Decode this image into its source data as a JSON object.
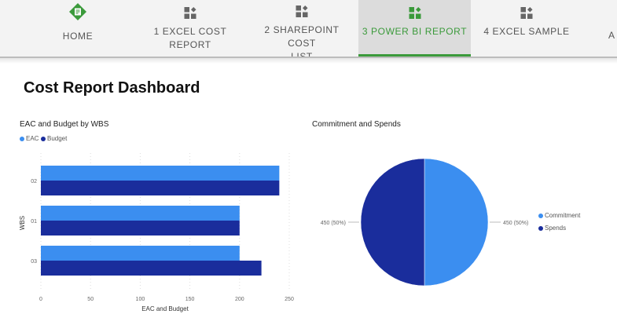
{
  "nav": {
    "tabs": [
      {
        "label": "HOME",
        "icon": "home-report-icon"
      },
      {
        "label": "1 EXCEL COST REPORT",
        "icon": "report-grid-icon"
      },
      {
        "label": "2 SHAREPOINT COST LIST",
        "icon": "report-grid-icon"
      },
      {
        "label": "3 POWER BI REPORT",
        "icon": "report-grid-icon",
        "active": true
      },
      {
        "label": "4 EXCEL SAMPLE",
        "icon": "report-grid-icon"
      },
      {
        "label": "A",
        "icon": ""
      }
    ],
    "active_color": "#3b9a3b"
  },
  "page": {
    "title": "Cost Report Dashboard"
  },
  "bar_visual": {
    "title": "EAC and Budget by WBS"
  },
  "pie_visual": {
    "title": "Commitment and Spends"
  },
  "colors": {
    "eac": "#3b8ef0",
    "budget": "#1a2d9c"
  },
  "chart_data": [
    {
      "type": "bar",
      "orientation": "horizontal",
      "title": "EAC and Budget by WBS",
      "categories": [
        "02",
        "01",
        "03"
      ],
      "series": [
        {
          "name": "EAC",
          "values": [
            240,
            200,
            200
          ]
        },
        {
          "name": "Budget",
          "values": [
            240,
            200,
            222
          ]
        }
      ],
      "xlabel": "EAC and Budget",
      "ylabel": "WBS",
      "xlim": [
        0,
        250
      ],
      "x_ticks": [
        "0",
        "50",
        "100",
        "150",
        "200",
        "250"
      ],
      "legend": "top-left",
      "grid": true
    },
    {
      "type": "pie",
      "title": "Commitment and Spends",
      "slices": [
        {
          "name": "Commitment",
          "value": 450,
          "label": "450 (50%)"
        },
        {
          "name": "Spends",
          "value": 450,
          "label": "450 (50%)"
        }
      ],
      "legend": "right"
    }
  ]
}
